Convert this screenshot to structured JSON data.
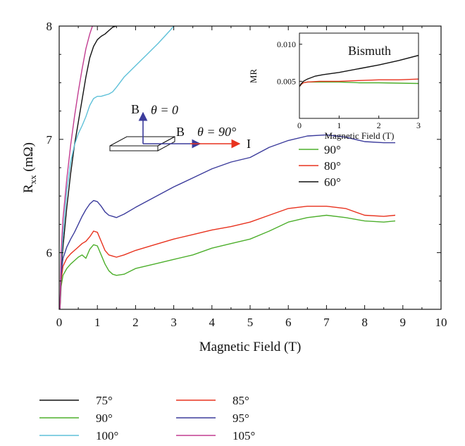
{
  "chart_data": {
    "type": "line",
    "main": {
      "xlabel": "Magnetic Field (T)",
      "ylabel": "R",
      "ylabel_sub": "xx",
      "ylabel_unit": " (mΩ)",
      "xlim": [
        0,
        10
      ],
      "ylim": [
        5.5,
        8
      ],
      "xticks": [
        "0",
        "1",
        "2",
        "3",
        "4",
        "5",
        "6",
        "7",
        "8",
        "9",
        "10"
      ],
      "yticks": [
        "6",
        "7",
        "8"
      ],
      "grid": false,
      "legend_position": "below-plot",
      "series": [
        {
          "name": "75°",
          "color": "#111111",
          "points": [
            [
              0.02,
              5.5
            ],
            [
              0.05,
              5.85
            ],
            [
              0.1,
              6.05
            ],
            [
              0.2,
              6.4
            ],
            [
              0.3,
              6.7
            ],
            [
              0.4,
              6.95
            ],
            [
              0.5,
              7.15
            ],
            [
              0.6,
              7.35
            ],
            [
              0.7,
              7.55
            ],
            [
              0.8,
              7.72
            ],
            [
              0.9,
              7.82
            ],
            [
              1.0,
              7.88
            ],
            [
              1.1,
              7.91
            ],
            [
              1.2,
              7.93
            ],
            [
              1.3,
              7.96
            ],
            [
              1.4,
              7.99
            ],
            [
              1.5,
              8.0
            ]
          ]
        },
        {
          "name": "90°",
          "color": "#4daf2c",
          "points": [
            [
              0.02,
              5.5
            ],
            [
              0.05,
              5.7
            ],
            [
              0.1,
              5.8
            ],
            [
              0.2,
              5.86
            ],
            [
              0.3,
              5.9
            ],
            [
              0.4,
              5.93
            ],
            [
              0.5,
              5.96
            ],
            [
              0.6,
              5.98
            ],
            [
              0.7,
              5.95
            ],
            [
              0.8,
              6.03
            ],
            [
              0.9,
              6.07
            ],
            [
              1.0,
              6.06
            ],
            [
              1.1,
              5.98
            ],
            [
              1.2,
              5.9
            ],
            [
              1.3,
              5.84
            ],
            [
              1.4,
              5.81
            ],
            [
              1.5,
              5.8
            ],
            [
              1.7,
              5.81
            ],
            [
              2.0,
              5.86
            ],
            [
              2.5,
              5.9
            ],
            [
              3.0,
              5.94
            ],
            [
              3.5,
              5.98
            ],
            [
              4.0,
              6.04
            ],
            [
              4.5,
              6.08
            ],
            [
              5.0,
              6.12
            ],
            [
              5.5,
              6.19
            ],
            [
              6.0,
              6.27
            ],
            [
              6.5,
              6.31
            ],
            [
              7.0,
              6.33
            ],
            [
              7.5,
              6.31
            ],
            [
              8.0,
              6.28
            ],
            [
              8.5,
              6.27
            ],
            [
              8.8,
              6.28
            ]
          ]
        },
        {
          "name": "100°",
          "color": "#5fc1d9",
          "points": [
            [
              0.02,
              5.5
            ],
            [
              0.05,
              5.9
            ],
            [
              0.1,
              6.15
            ],
            [
              0.2,
              6.55
            ],
            [
              0.3,
              6.8
            ],
            [
              0.4,
              6.95
            ],
            [
              0.5,
              7.05
            ],
            [
              0.6,
              7.12
            ],
            [
              0.7,
              7.2
            ],
            [
              0.8,
              7.3
            ],
            [
              0.9,
              7.36
            ],
            [
              1.0,
              7.38
            ],
            [
              1.1,
              7.38
            ],
            [
              1.2,
              7.39
            ],
            [
              1.3,
              7.4
            ],
            [
              1.4,
              7.42
            ],
            [
              1.5,
              7.46
            ],
            [
              1.7,
              7.55
            ],
            [
              2.0,
              7.65
            ],
            [
              2.3,
              7.75
            ],
            [
              2.6,
              7.85
            ],
            [
              2.9,
              7.96
            ],
            [
              3.0,
              8.0
            ]
          ]
        },
        {
          "name": "85°",
          "color": "#e8321e",
          "points": [
            [
              0.02,
              5.5
            ],
            [
              0.05,
              5.75
            ],
            [
              0.1,
              5.88
            ],
            [
              0.2,
              5.95
            ],
            [
              0.3,
              5.99
            ],
            [
              0.4,
              6.02
            ],
            [
              0.5,
              6.05
            ],
            [
              0.6,
              6.08
            ],
            [
              0.7,
              6.1
            ],
            [
              0.8,
              6.14
            ],
            [
              0.9,
              6.19
            ],
            [
              1.0,
              6.18
            ],
            [
              1.1,
              6.1
            ],
            [
              1.2,
              6.02
            ],
            [
              1.3,
              5.98
            ],
            [
              1.4,
              5.97
            ],
            [
              1.5,
              5.96
            ],
            [
              1.7,
              5.98
            ],
            [
              2.0,
              6.02
            ],
            [
              2.5,
              6.07
            ],
            [
              3.0,
              6.12
            ],
            [
              3.5,
              6.16
            ],
            [
              4.0,
              6.2
            ],
            [
              4.5,
              6.23
            ],
            [
              5.0,
              6.27
            ],
            [
              5.5,
              6.33
            ],
            [
              6.0,
              6.39
            ],
            [
              6.5,
              6.41
            ],
            [
              7.0,
              6.41
            ],
            [
              7.5,
              6.39
            ],
            [
              8.0,
              6.33
            ],
            [
              8.5,
              6.32
            ],
            [
              8.8,
              6.33
            ]
          ]
        },
        {
          "name": "95°",
          "color": "#3c3c9c",
          "points": [
            [
              0.02,
              5.5
            ],
            [
              0.05,
              5.8
            ],
            [
              0.1,
              5.95
            ],
            [
              0.2,
              6.05
            ],
            [
              0.3,
              6.12
            ],
            [
              0.4,
              6.18
            ],
            [
              0.5,
              6.25
            ],
            [
              0.6,
              6.32
            ],
            [
              0.7,
              6.38
            ],
            [
              0.8,
              6.43
            ],
            [
              0.9,
              6.46
            ],
            [
              1.0,
              6.45
            ],
            [
              1.1,
              6.41
            ],
            [
              1.2,
              6.36
            ],
            [
              1.3,
              6.33
            ],
            [
              1.4,
              6.32
            ],
            [
              1.5,
              6.31
            ],
            [
              1.7,
              6.34
            ],
            [
              2.0,
              6.4
            ],
            [
              2.5,
              6.49
            ],
            [
              3.0,
              6.58
            ],
            [
              3.5,
              6.66
            ],
            [
              4.0,
              6.74
            ],
            [
              4.5,
              6.8
            ],
            [
              5.0,
              6.84
            ],
            [
              5.5,
              6.93
            ],
            [
              6.0,
              6.99
            ],
            [
              6.5,
              7.03
            ],
            [
              7.0,
              7.04
            ],
            [
              7.5,
              7.02
            ],
            [
              8.0,
              6.98
            ],
            [
              8.5,
              6.97
            ],
            [
              8.8,
              6.97
            ]
          ]
        },
        {
          "name": "105°",
          "color": "#c23d91",
          "points": [
            [
              0.02,
              5.5
            ],
            [
              0.05,
              6.0
            ],
            [
              0.1,
              6.3
            ],
            [
              0.2,
              6.65
            ],
            [
              0.3,
              6.95
            ],
            [
              0.4,
              7.2
            ],
            [
              0.5,
              7.42
            ],
            [
              0.6,
              7.62
            ],
            [
              0.7,
              7.8
            ],
            [
              0.8,
              7.93
            ],
            [
              0.87,
              8.0
            ]
          ]
        }
      ]
    },
    "inset": {
      "title": "Bismuth",
      "xlabel": "Magnetic Field (T)",
      "ylabel": "MR",
      "xlim": [
        0,
        3
      ],
      "ylim": [
        0,
        0.0115
      ],
      "xticks": [
        "0",
        "1",
        "2",
        "3"
      ],
      "yticks": [
        "0.005",
        "0.010"
      ],
      "legend_position": "below-inset",
      "series": [
        {
          "name": "90°",
          "color": "#4daf2c",
          "points": [
            [
              0,
              0.0043
            ],
            [
              0.05,
              0.0046
            ],
            [
              0.1,
              0.0048
            ],
            [
              0.2,
              0.0049
            ],
            [
              0.4,
              0.0049
            ],
            [
              1.0,
              0.0049
            ],
            [
              1.5,
              0.0048
            ],
            [
              2.0,
              0.0048
            ],
            [
              2.5,
              0.00475
            ],
            [
              3.0,
              0.0047
            ]
          ]
        },
        {
          "name": "80°",
          "color": "#e8321e",
          "points": [
            [
              0,
              0.0043
            ],
            [
              0.05,
              0.0046
            ],
            [
              0.1,
              0.0048
            ],
            [
              0.2,
              0.0049
            ],
            [
              0.5,
              0.005
            ],
            [
              1.0,
              0.005
            ],
            [
              1.5,
              0.0051
            ],
            [
              2.0,
              0.0052
            ],
            [
              2.5,
              0.0052
            ],
            [
              3.0,
              0.0053
            ]
          ]
        },
        {
          "name": "60°",
          "color": "#111111",
          "points": [
            [
              0,
              0.0043
            ],
            [
              0.05,
              0.0047
            ],
            [
              0.1,
              0.005
            ],
            [
              0.2,
              0.0053
            ],
            [
              0.4,
              0.0057
            ],
            [
              0.6,
              0.0059
            ],
            [
              1.0,
              0.0062
            ],
            [
              1.5,
              0.0067
            ],
            [
              2.0,
              0.0072
            ],
            [
              2.5,
              0.0078
            ],
            [
              3.0,
              0.0085
            ]
          ]
        }
      ]
    },
    "annotations": {
      "b_vertical": "B",
      "theta_zero": "θ = 0",
      "b_horizontal": "B",
      "theta_ninety": "θ = 90°",
      "current": "I"
    }
  }
}
